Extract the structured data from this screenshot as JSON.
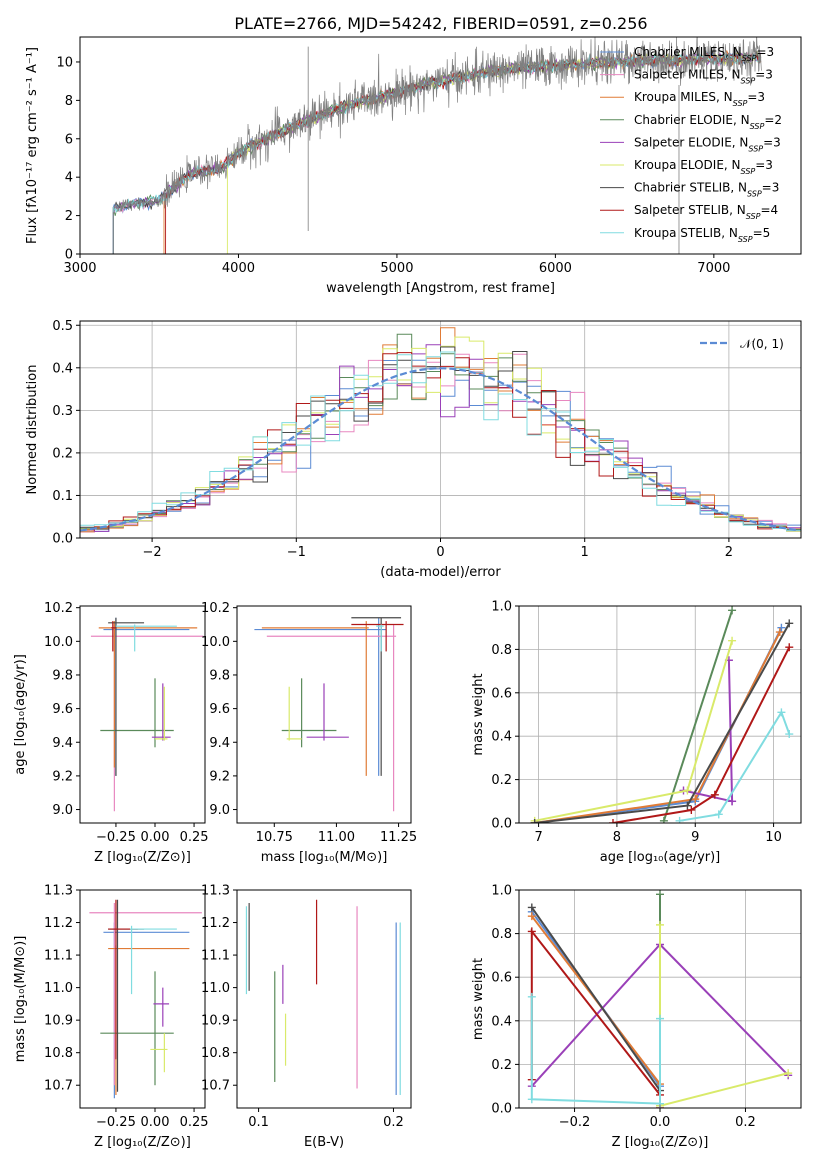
{
  "title": "PLATE=2766, MJD=54242, FIBERID=0591, z=0.256",
  "models": [
    {
      "name": "Chabrier MILES",
      "nssp": "3",
      "color": "#5b8bd4"
    },
    {
      "name": "Salpeter MILES",
      "nssp": "3",
      "color": "#e888c0"
    },
    {
      "name": "Kroupa MILES",
      "nssp": "3",
      "color": "#e07b36"
    },
    {
      "name": "Chabrier ELODIE",
      "nssp": "2",
      "color": "#5a8a5a"
    },
    {
      "name": "Salpeter ELODIE",
      "nssp": "3",
      "color": "#9a40b8"
    },
    {
      "name": "Kroupa ELODIE",
      "nssp": "3",
      "color": "#d9ea6a"
    },
    {
      "name": "Chabrier STELIB",
      "nssp": "3",
      "color": "#4a4a4a"
    },
    {
      "name": "Salpeter STELIB",
      "nssp": "4",
      "color": "#b01818"
    },
    {
      "name": "Kroupa STELIB",
      "nssp": "5",
      "color": "#80dce0"
    }
  ],
  "legend_ssp_prefix": "N",
  "legend_ssp_sub": "SSP",
  "chart_data": [
    {
      "id": "spectrum",
      "type": "line",
      "xlabel": "wavelength [Angstrom, rest frame]",
      "ylabel": "Flux [fλ10⁻¹⁷ erg cm⁻² s⁻¹ A⁻¹]",
      "xlim": [
        3000,
        7550
      ],
      "ylim": [
        0,
        11.3
      ],
      "xticks": [
        3000,
        4000,
        5000,
        6000,
        7000
      ],
      "yticks": [
        0,
        2,
        4,
        6,
        8,
        10
      ],
      "data_color": "#7f7f7f",
      "continuum_x": [
        3210,
        3300,
        3500,
        3700,
        3900,
        4000,
        4200,
        4400,
        4600,
        4800,
        5000,
        5200,
        5400,
        5600,
        5800,
        6000,
        6200,
        6400,
        6600,
        6800,
        7000,
        7300
      ],
      "continuum_y": [
        2.3,
        2.6,
        2.8,
        4.2,
        4.5,
        5.3,
        6.1,
        6.8,
        7.5,
        8.0,
        8.4,
        8.9,
        9.2,
        9.5,
        9.7,
        9.8,
        9.9,
        10.0,
        10.1,
        10.1,
        10.2,
        10.2
      ],
      "model_start_wavelengths": [
        3210,
        3210,
        3530,
        3210,
        3210,
        3930,
        3210,
        3540,
        3210
      ],
      "legend_position": "top-right"
    },
    {
      "id": "residual_hist",
      "type": "bar",
      "xlabel": "(data-model)/error",
      "ylabel": "Normed distribution",
      "xlim": [
        -2.5,
        2.5
      ],
      "ylim": [
        0,
        0.51
      ],
      "xticks": [
        -2,
        -1,
        0,
        1,
        2
      ],
      "yticks": [
        0.0,
        0.1,
        0.2,
        0.3,
        0.4,
        0.5
      ],
      "bin_width": 0.1,
      "reference_curve": "N(0,1)",
      "reference_label": "𝒩(0, 1)",
      "reference_color": "#5b8bd4",
      "legend_position": "top-right"
    },
    {
      "id": "age_vs_Z",
      "type": "scatter",
      "xlabel": "Z [log₁₀(Z/Z⊙)]",
      "ylabel": "age  [log₁₀(age/yr)]",
      "xlim": [
        -0.48,
        0.32
      ],
      "ylim": [
        8.92,
        10.21
      ],
      "xticks": [
        -0.25,
        0.0,
        0.25
      ],
      "yticks": [
        9.0,
        9.2,
        9.4,
        9.6,
        9.8,
        10.0,
        10.2
      ],
      "points": [
        {
          "m": 0,
          "x": -0.25,
          "xlo": -0.33,
          "xhi": 0.22,
          "y": 10.07,
          "ylo": 9.2,
          "yhi": 10.14
        },
        {
          "m": 1,
          "x": -0.26,
          "xlo": -0.41,
          "xhi": 0.31,
          "y": 10.03,
          "ylo": 8.99,
          "yhi": 10.1
        },
        {
          "m": 2,
          "x": -0.26,
          "xlo": -0.36,
          "xhi": 0.27,
          "y": 10.08,
          "ylo": 9.25,
          "yhi": 10.12
        },
        {
          "m": 3,
          "x": 0.0,
          "xlo": -0.35,
          "xhi": 0.12,
          "y": 9.47,
          "ylo": 9.37,
          "yhi": 9.78
        },
        {
          "m": 4,
          "x": 0.05,
          "xlo": -0.02,
          "xhi": 0.1,
          "y": 9.43,
          "ylo": 9.41,
          "yhi": 9.75
        },
        {
          "m": 5,
          "x": 0.06,
          "xlo": 0.0,
          "xhi": 0.08,
          "y": 9.42,
          "ylo": 9.41,
          "yhi": 9.73
        },
        {
          "m": 6,
          "x": -0.25,
          "xlo": -0.3,
          "xhi": -0.07,
          "y": 10.11,
          "ylo": 9.2,
          "yhi": 10.14
        },
        {
          "m": 7,
          "x": -0.27,
          "xlo": -0.28,
          "xhi": -0.25,
          "y": 10.08,
          "ylo": 9.94,
          "yhi": 10.12
        },
        {
          "m": 8,
          "x": -0.13,
          "xlo": -0.25,
          "xhi": 0.14,
          "y": 10.09,
          "ylo": 9.94,
          "yhi": 10.1
        }
      ]
    },
    {
      "id": "age_vs_mass",
      "type": "scatter",
      "xlabel": "mass [log₁₀(M/M⊙)]",
      "ylabel": "",
      "xlim": [
        10.6,
        11.3
      ],
      "ylim": [
        8.92,
        10.21
      ],
      "xticks": [
        10.75,
        11.0,
        11.25
      ],
      "yticks": [
        9.0,
        9.2,
        9.4,
        9.6,
        9.8,
        10.0,
        10.2
      ],
      "points": [
        {
          "m": 0,
          "x": 11.17,
          "xlo": 10.67,
          "xhi": 11.2,
          "y": 10.07,
          "ylo": 9.2,
          "yhi": 10.14
        },
        {
          "m": 1,
          "x": 11.23,
          "xlo": 10.72,
          "xhi": 11.24,
          "y": 10.03,
          "ylo": 8.99,
          "yhi": 10.1
        },
        {
          "m": 2,
          "x": 11.12,
          "xlo": 10.7,
          "xhi": 11.13,
          "y": 10.08,
          "ylo": 9.2,
          "yhi": 10.12
        },
        {
          "m": 3,
          "x": 10.86,
          "xlo": 10.78,
          "xhi": 11.0,
          "y": 9.47,
          "ylo": 9.37,
          "yhi": 9.78
        },
        {
          "m": 4,
          "x": 10.95,
          "xlo": 10.88,
          "xhi": 11.05,
          "y": 9.43,
          "ylo": 9.41,
          "yhi": 9.75
        },
        {
          "m": 5,
          "x": 10.81,
          "xlo": 10.8,
          "xhi": 10.86,
          "y": 9.42,
          "ylo": 9.41,
          "yhi": 9.73
        },
        {
          "m": 6,
          "x": 11.18,
          "xlo": 11.06,
          "xhi": 11.26,
          "y": 10.14,
          "ylo": 9.2,
          "yhi": 10.14
        },
        {
          "m": 7,
          "x": 11.2,
          "xlo": 11.06,
          "xhi": 11.27,
          "y": 10.1,
          "ylo": 9.94,
          "yhi": 10.12
        },
        {
          "m": 8,
          "x": 11.18,
          "xlo": 11.16,
          "xhi": 11.19,
          "y": 10.09,
          "ylo": 9.94,
          "yhi": 10.1
        }
      ]
    },
    {
      "id": "weight_vs_age",
      "type": "line",
      "xlabel": "age  [log₁₀(age/yr)]",
      "ylabel": "mass weight",
      "xlim": [
        6.75,
        10.35
      ],
      "ylim": [
        0.0,
        1.0
      ],
      "xticks": [
        7,
        8,
        9,
        10
      ],
      "yticks": [
        0.0,
        0.2,
        0.4,
        0.6,
        0.8,
        1.0
      ],
      "series": [
        {
          "m": 0,
          "x": [
            6.95,
            9.0,
            10.1
          ],
          "y": [
            0.0,
            0.1,
            0.9
          ]
        },
        {
          "m": 2,
          "x": [
            6.95,
            9.0,
            10.08
          ],
          "y": [
            0.0,
            0.11,
            0.88
          ]
        },
        {
          "m": 3,
          "x": [
            8.6,
            9.47
          ],
          "y": [
            0.01,
            0.98
          ]
        },
        {
          "m": 4,
          "x": [
            8.85,
            9.47,
            9.43,
            9.47
          ],
          "y": [
            0.15,
            0.1,
            0.75,
            0.1
          ]
        },
        {
          "m": 5,
          "x": [
            6.95,
            8.9,
            9.47
          ],
          "y": [
            0.01,
            0.15,
            0.84
          ]
        },
        {
          "m": 6,
          "x": [
            6.95,
            8.9,
            10.2
          ],
          "y": [
            0.0,
            0.08,
            0.92
          ]
        },
        {
          "m": 7,
          "x": [
            7.95,
            8.95,
            9.25,
            10.2
          ],
          "y": [
            0.0,
            0.06,
            0.13,
            0.81
          ]
        },
        {
          "m": 8,
          "x": [
            8.8,
            9.3,
            10.1,
            10.2
          ],
          "y": [
            0.01,
            0.04,
            0.51,
            0.41
          ]
        }
      ]
    },
    {
      "id": "mass_vs_Z",
      "type": "scatter",
      "xlabel": "Z [log₁₀(Z/Z⊙)]",
      "ylabel": "mass [log₁₀(M/M⊙)]",
      "xlim": [
        -0.48,
        0.32
      ],
      "ylim": [
        10.63,
        11.3
      ],
      "xticks": [
        -0.25,
        0.0,
        0.25
      ],
      "yticks": [
        10.7,
        10.8,
        10.9,
        11.0,
        11.1,
        11.2,
        11.3
      ],
      "points": [
        {
          "m": 0,
          "x": -0.26,
          "xlo": -0.33,
          "xhi": 0.22,
          "y": 11.17,
          "ylo": 10.66,
          "yhi": 11.2
        },
        {
          "m": 1,
          "x": -0.26,
          "xlo": -0.42,
          "xhi": 0.3,
          "y": 11.23,
          "ylo": 10.7,
          "yhi": 11.26
        },
        {
          "m": 2,
          "x": -0.25,
          "xlo": -0.3,
          "xhi": 0.22,
          "y": 11.12,
          "ylo": 10.67,
          "yhi": 11.13
        },
        {
          "m": 3,
          "x": 0.0,
          "xlo": -0.35,
          "xhi": 0.12,
          "y": 10.86,
          "ylo": 10.7,
          "yhi": 11.05
        },
        {
          "m": 4,
          "x": 0.05,
          "xlo": -0.01,
          "xhi": 0.09,
          "y": 10.95,
          "ylo": 10.88,
          "yhi": 11.0
        },
        {
          "m": 5,
          "x": 0.06,
          "xlo": -0.03,
          "xhi": 0.08,
          "y": 10.81,
          "ylo": 10.74,
          "yhi": 10.86
        },
        {
          "m": 6,
          "x": -0.24,
          "xlo": -0.3,
          "xhi": -0.07,
          "y": 11.18,
          "ylo": 10.68,
          "yhi": 11.27
        },
        {
          "m": 7,
          "x": -0.25,
          "xlo": -0.3,
          "xhi": -0.11,
          "y": 11.18,
          "ylo": 10.78,
          "yhi": 11.27
        },
        {
          "m": 8,
          "x": -0.15,
          "xlo": -0.16,
          "xhi": 0.14,
          "y": 11.18,
          "ylo": 10.98,
          "yhi": 11.19
        }
      ]
    },
    {
      "id": "mass_vs_ebv",
      "type": "scatter",
      "xlabel": "E(B-V)",
      "ylabel": "",
      "xlim": [
        0.084,
        0.213
      ],
      "ylim": [
        10.63,
        11.3
      ],
      "xticks": [
        0.1,
        0.2
      ],
      "yticks": [
        10.7,
        10.8,
        10.9,
        11.0,
        11.1,
        11.2,
        11.3
      ],
      "segments": [
        {
          "m": 8,
          "x": 0.091,
          "ylo": 10.98,
          "yhi": 11.25
        },
        {
          "m": 6,
          "x": 0.093,
          "ylo": 10.99,
          "yhi": 11.26
        },
        {
          "m": 3,
          "x": 0.112,
          "ylo": 10.71,
          "yhi": 11.05
        },
        {
          "m": 4,
          "x": 0.118,
          "ylo": 10.95,
          "yhi": 11.07
        },
        {
          "m": 5,
          "x": 0.12,
          "ylo": 10.76,
          "yhi": 10.92
        },
        {
          "m": 7,
          "x": 0.143,
          "ylo": 11.01,
          "yhi": 11.27
        },
        {
          "m": 1,
          "x": 0.173,
          "ylo": 10.69,
          "yhi": 11.25
        },
        {
          "m": 0,
          "x": 0.202,
          "ylo": 10.67,
          "yhi": 11.2
        },
        {
          "m": 8,
          "x": 0.205,
          "ylo": 10.67,
          "yhi": 11.2
        }
      ]
    },
    {
      "id": "weight_vs_Z",
      "type": "line",
      "xlabel": "Z [log₁₀(Z/Z⊙)]",
      "ylabel": "mass weight",
      "xlim": [
        -0.33,
        0.33
      ],
      "ylim": [
        0.0,
        1.0
      ],
      "xticks": [
        -0.2,
        0.0,
        0.2
      ],
      "yticks": [
        0.0,
        0.2,
        0.4,
        0.6,
        0.8,
        1.0
      ],
      "series": [
        {
          "m": 0,
          "x": [
            -0.3,
            0.0
          ],
          "y": [
            0.9,
            0.1
          ]
        },
        {
          "m": 2,
          "x": [
            -0.3,
            0.0
          ],
          "y": [
            0.88,
            0.11
          ]
        },
        {
          "m": 3,
          "x": [
            0.0,
            0.0
          ],
          "y": [
            0.98,
            0.01
          ]
        },
        {
          "m": 4,
          "x": [
            -0.3,
            0.0,
            0.3
          ],
          "y": [
            0.1,
            0.75,
            0.15
          ]
        },
        {
          "m": 5,
          "x": [
            0.0,
            0.0,
            0.3
          ],
          "y": [
            0.84,
            0.01,
            0.16
          ]
        },
        {
          "m": 6,
          "x": [
            -0.3,
            0.0
          ],
          "y": [
            0.92,
            0.08
          ]
        },
        {
          "m": 7,
          "x": [
            -0.3,
            -0.3,
            0.0,
            0.0
          ],
          "y": [
            0.13,
            0.81,
            0.06,
            0.0
          ]
        },
        {
          "m": 8,
          "x": [
            -0.3,
            -0.3,
            0.0,
            0.0
          ],
          "y": [
            0.51,
            0.04,
            0.02,
            0.41
          ]
        }
      ]
    }
  ]
}
